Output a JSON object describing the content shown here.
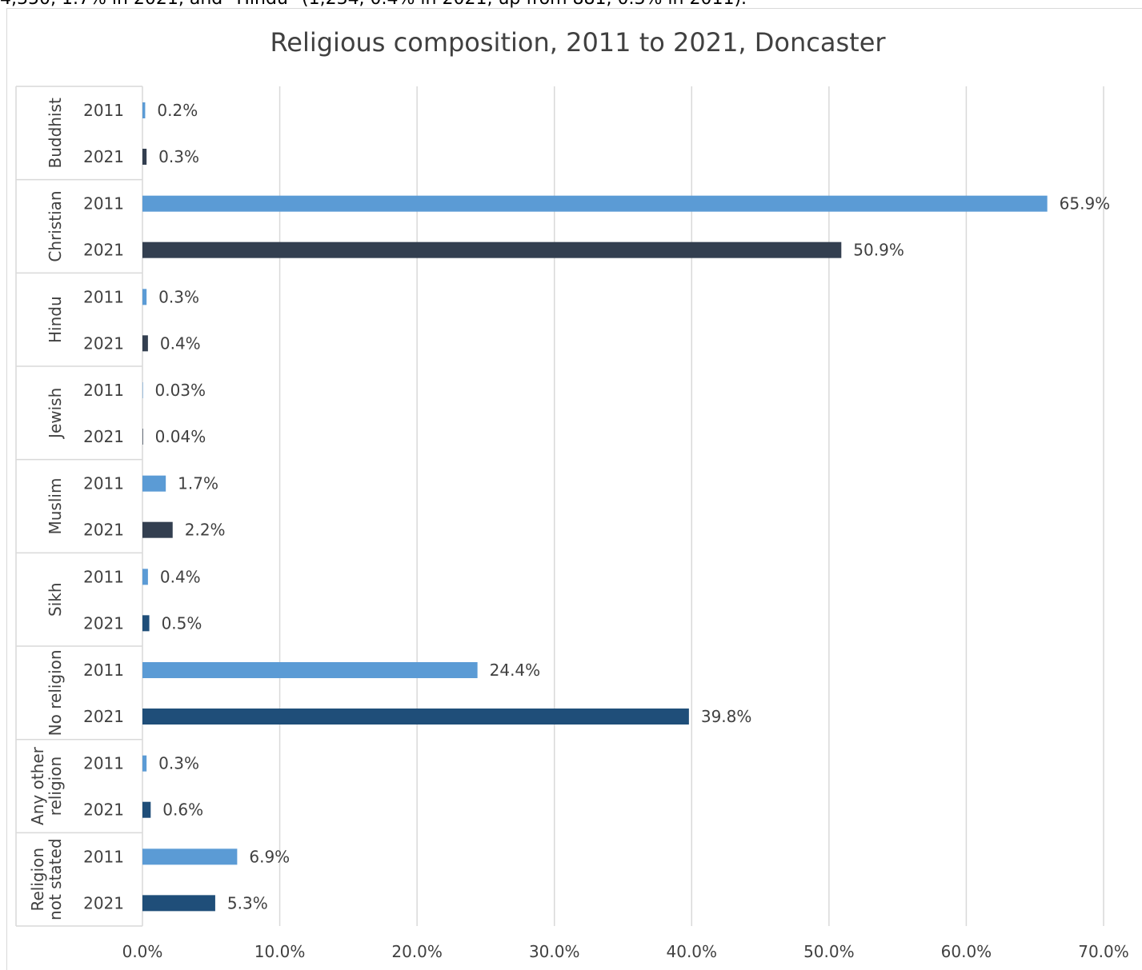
{
  "intro_text": "4,350, 1.7% in 2021, and \"Hindu\" (1,234, 0.4% in 2021, up from 881, 0.3% in 2011).",
  "colors": {
    "year_2011": "#5b9bd5",
    "year_2021_dark": "#333f50",
    "year_2021_blue": "#1f4e79",
    "gridline": "#d9d9d9",
    "text": "#404040"
  },
  "chart_data": {
    "type": "bar",
    "orientation": "horizontal",
    "title": "Religious composition, 2011 to 2021, Doncaster",
    "xlabel": "",
    "ylabel": "",
    "xlim": [
      0,
      70
    ],
    "x_ticks": [
      "0.0%",
      "10.0%",
      "20.0%",
      "30.0%",
      "40.0%",
      "50.0%",
      "60.0%",
      "70.0%"
    ],
    "grid": true,
    "legend": "none",
    "groups": [
      {
        "category": "Buddhist",
        "bars": [
          {
            "year": "2011",
            "value": 0.2,
            "label": "0.2%"
          },
          {
            "year": "2021",
            "value": 0.3,
            "label": "0.3%"
          }
        ]
      },
      {
        "category": "Christian",
        "bars": [
          {
            "year": "2011",
            "value": 65.9,
            "label": "65.9%"
          },
          {
            "year": "2021",
            "value": 50.9,
            "label": "50.9%"
          }
        ]
      },
      {
        "category": "Hindu",
        "bars": [
          {
            "year": "2011",
            "value": 0.3,
            "label": "0.3%"
          },
          {
            "year": "2021",
            "value": 0.4,
            "label": "0.4%"
          }
        ]
      },
      {
        "category": "Jewish",
        "bars": [
          {
            "year": "2011",
            "value": 0.03,
            "label": "0.03%"
          },
          {
            "year": "2021",
            "value": 0.04,
            "label": "0.04%"
          }
        ]
      },
      {
        "category": "Muslim",
        "bars": [
          {
            "year": "2011",
            "value": 1.7,
            "label": "1.7%"
          },
          {
            "year": "2021",
            "value": 2.2,
            "label": "2.2%"
          }
        ]
      },
      {
        "category": "Sikh",
        "bars": [
          {
            "year": "2011",
            "value": 0.4,
            "label": "0.4%"
          },
          {
            "year": "2021",
            "value": 0.5,
            "label": "0.5%"
          }
        ]
      },
      {
        "category": "No religion",
        "bars": [
          {
            "year": "2011",
            "value": 24.4,
            "label": "24.4%"
          },
          {
            "year": "2021",
            "value": 39.8,
            "label": "39.8%"
          }
        ]
      },
      {
        "category": "Any other religion",
        "category_lines": [
          "Any other",
          "religion"
        ],
        "bars": [
          {
            "year": "2011",
            "value": 0.3,
            "label": "0.3%"
          },
          {
            "year": "2021",
            "value": 0.6,
            "label": "0.6%"
          }
        ]
      },
      {
        "category": "Religion not stated",
        "category_lines": [
          "Religion",
          "not stated"
        ],
        "bars": [
          {
            "year": "2011",
            "value": 6.9,
            "label": "6.9%"
          },
          {
            "year": "2021",
            "value": 5.3,
            "label": "5.3%"
          }
        ]
      }
    ]
  }
}
